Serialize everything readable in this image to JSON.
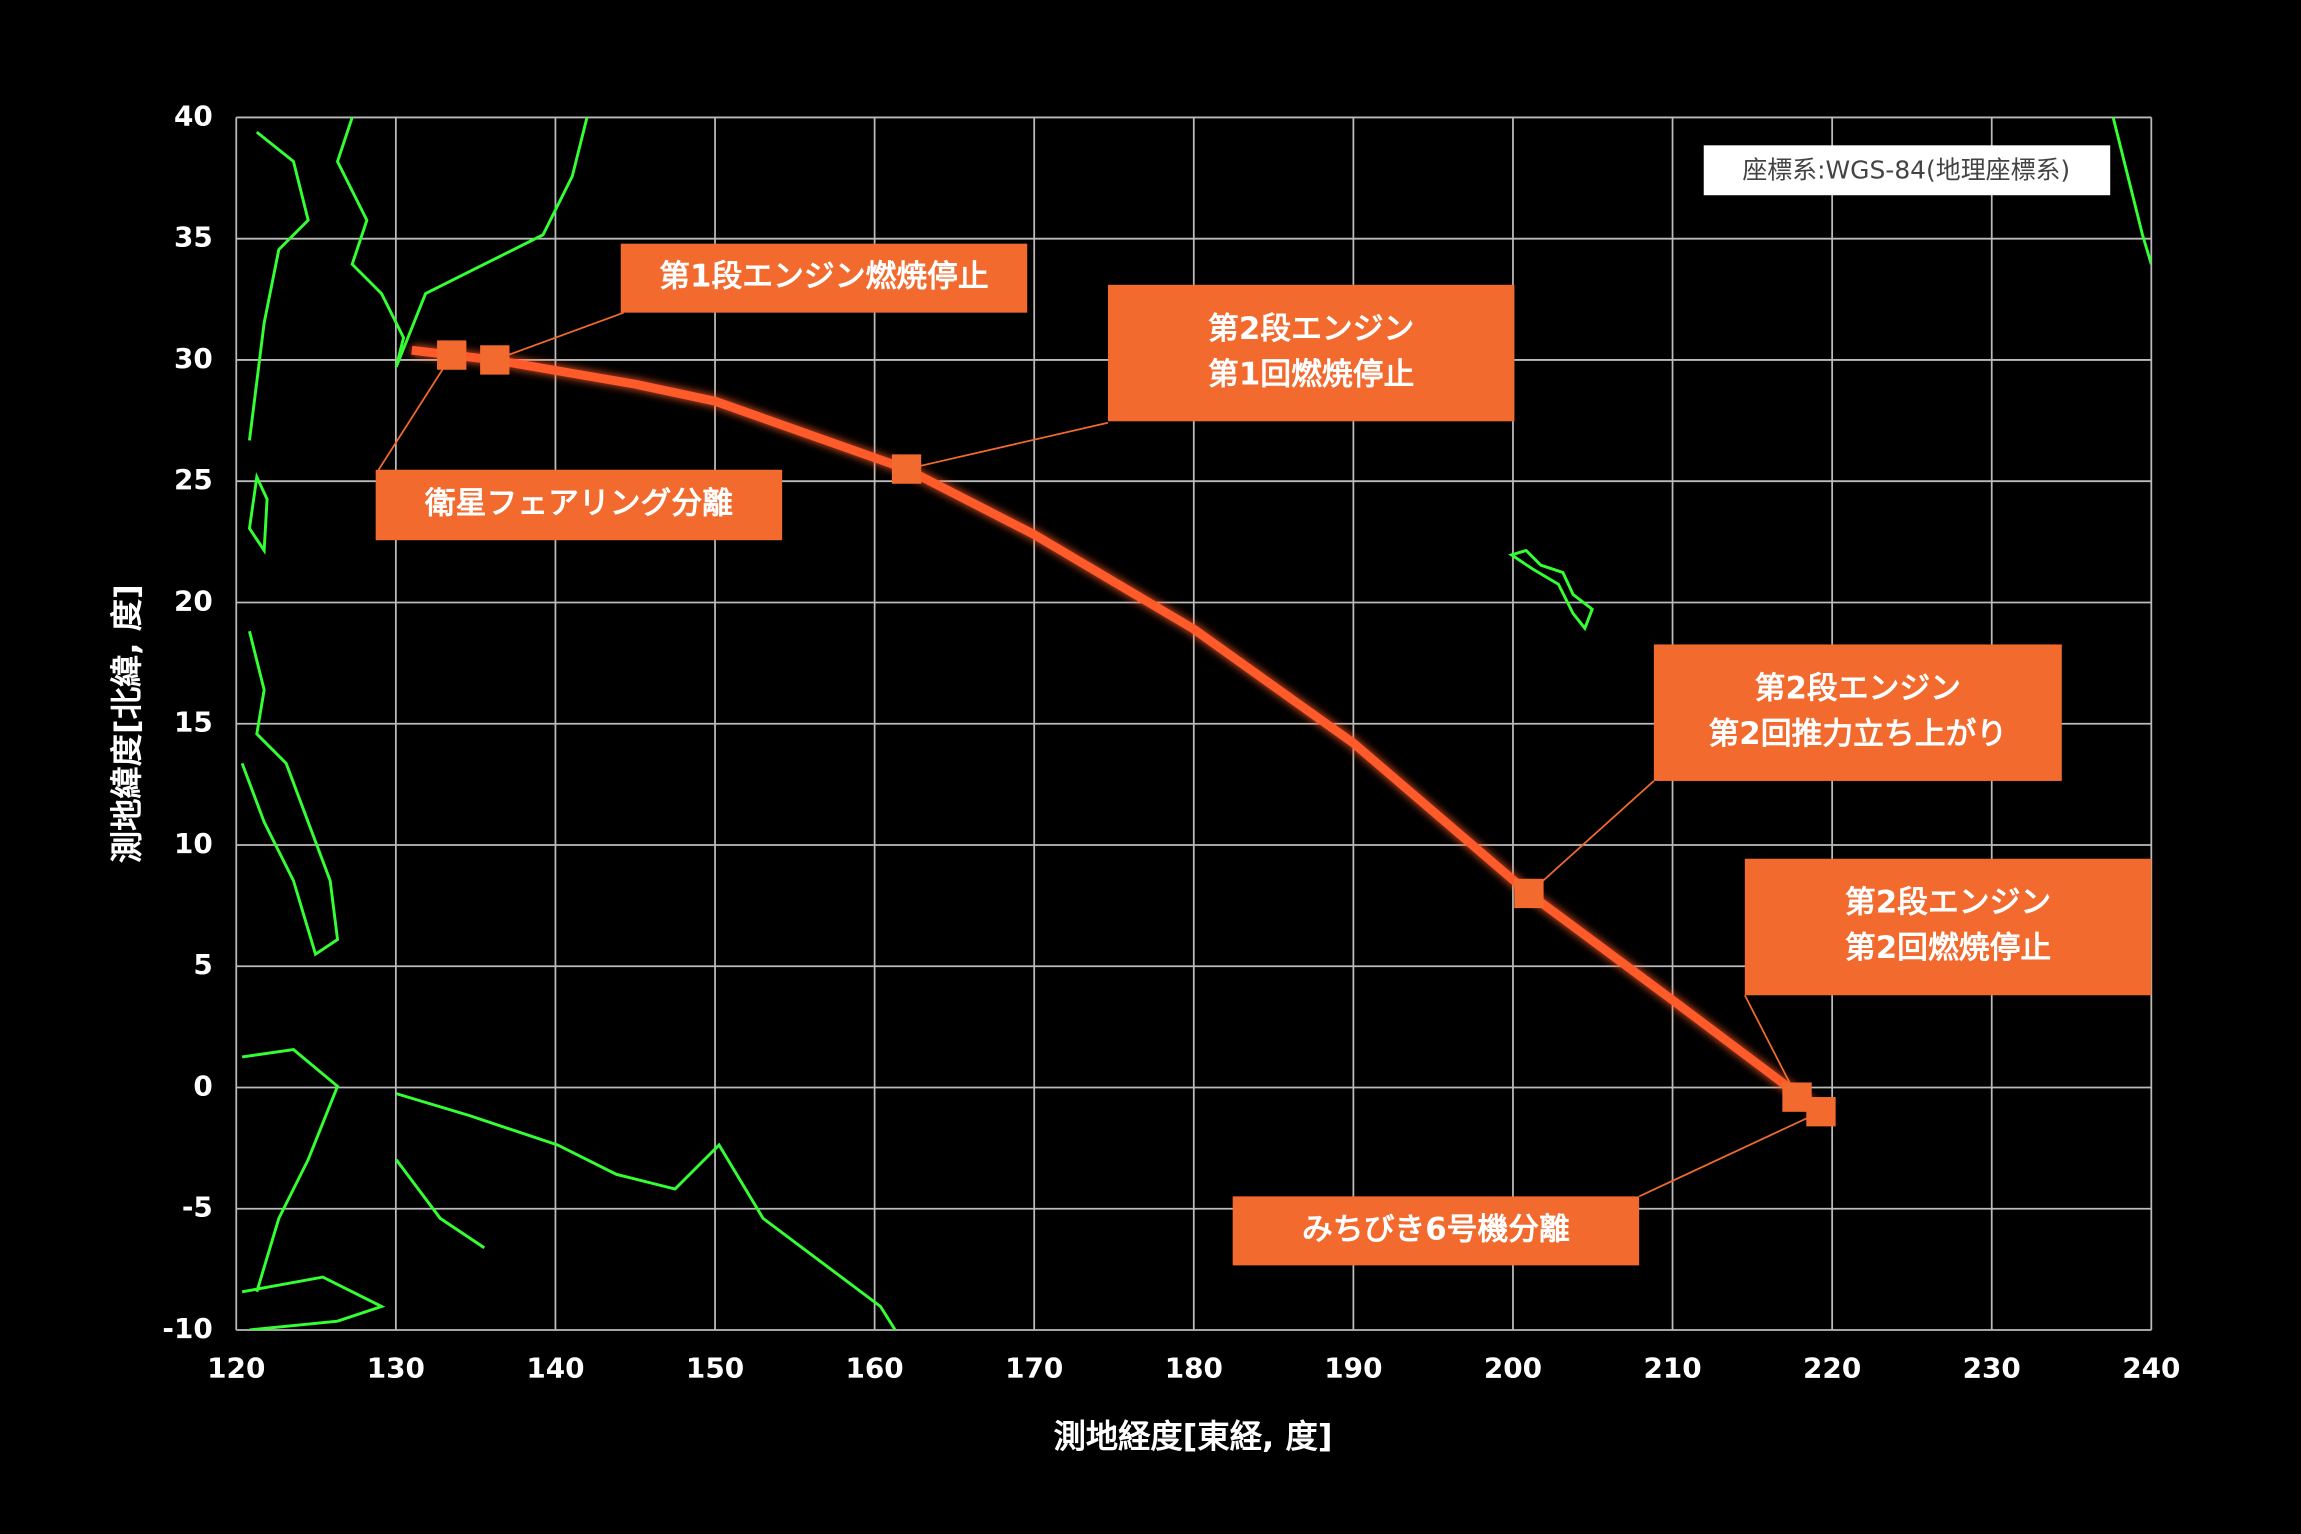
{
  "chart_data": {
    "type": "line",
    "x_label": "測地経度[東経, 度]",
    "y_label": "測地緯度[北緯, 度]",
    "note": "座標系:WGS-84(地理座標系)",
    "xlim": [
      120,
      240
    ],
    "xticks": [
      120,
      130,
      140,
      150,
      160,
      170,
      180,
      190,
      200,
      210,
      220,
      230,
      240
    ],
    "ylim": [
      -10,
      40
    ],
    "yticks": [
      -10,
      -5,
      0,
      5,
      10,
      15,
      20,
      25,
      30,
      35,
      40
    ],
    "grid": true,
    "series": [
      {
        "color": "#ff5a2a",
        "x": [
          131,
          136.2,
          145,
          150,
          162,
          170,
          180,
          190,
          201,
          210,
          219.3
        ],
        "values": [
          30.4,
          30.0,
          29.0,
          28.3,
          25.5,
          22.8,
          18.9,
          14.2,
          8.0,
          3.6,
          -1.0
        ]
      }
    ],
    "events": [
      {
        "label": [
          "衛星フェアリング分離"
        ],
        "x": 133.5,
        "y": 30.2
      },
      {
        "label": [
          "第1段エンジン燃焼停止"
        ],
        "x": 136.2,
        "y": 30.0
      },
      {
        "label": [
          "第2段エンジン",
          "第1回燃焼停止"
        ],
        "x": 162,
        "y": 25.5
      },
      {
        "label": [
          "第2段エンジン",
          "第2回推力立ち上がり"
        ],
        "x": 201,
        "y": 8.0
      },
      {
        "label": [
          "第2段エンジン",
          "第2回燃焼停止"
        ],
        "x": 217.8,
        "y": -0.4
      },
      {
        "label": [
          "みちびき6号機分離"
        ],
        "x": 219.3,
        "y": -1.0
      }
    ],
    "event_color": "#f26a2e"
  }
}
